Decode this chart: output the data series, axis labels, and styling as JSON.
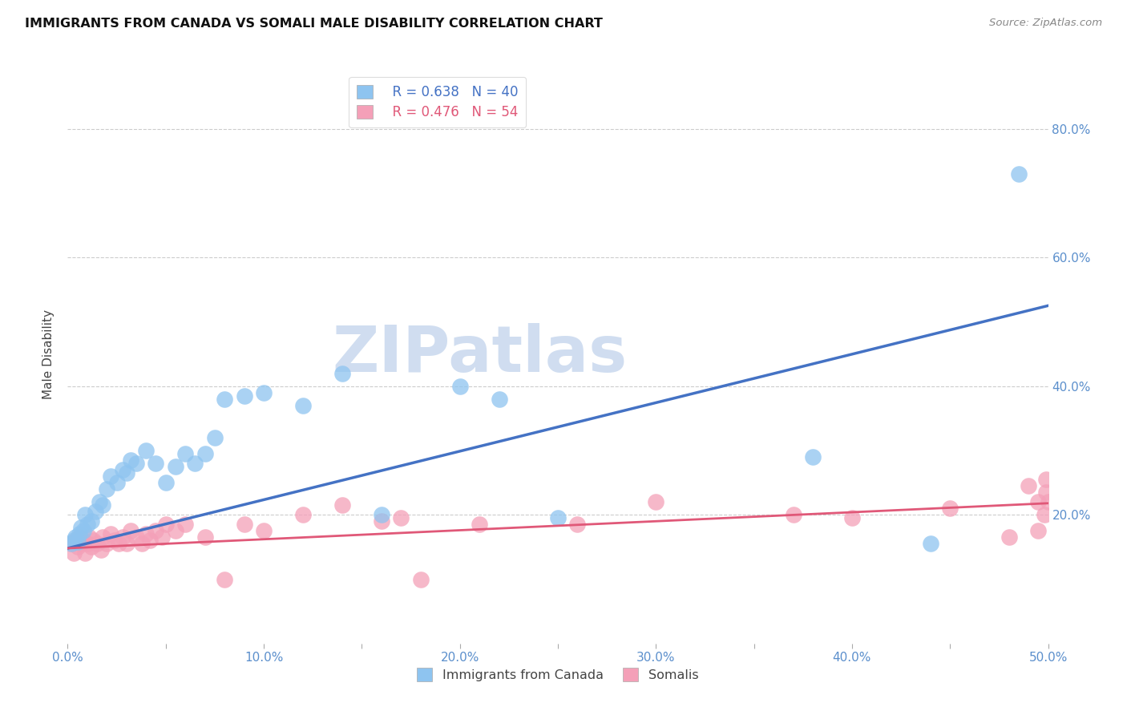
{
  "title": "IMMIGRANTS FROM CANADA VS SOMALI MALE DISABILITY CORRELATION CHART",
  "source": "Source: ZipAtlas.com",
  "ylabel": "Male Disability",
  "xlim": [
    0.0,
    0.5
  ],
  "ylim": [
    0.0,
    0.9
  ],
  "xtick_labels": [
    "0.0%",
    "",
    "10.0%",
    "",
    "20.0%",
    "",
    "30.0%",
    "",
    "40.0%",
    "",
    "50.0%"
  ],
  "xtick_values": [
    0.0,
    0.05,
    0.1,
    0.15,
    0.2,
    0.25,
    0.3,
    0.35,
    0.4,
    0.45,
    0.5
  ],
  "ytick_labels": [
    "20.0%",
    "40.0%",
    "60.0%",
    "80.0%"
  ],
  "ytick_values": [
    0.2,
    0.4,
    0.6,
    0.8
  ],
  "blue_R": 0.638,
  "blue_N": 40,
  "pink_R": 0.476,
  "pink_N": 54,
  "blue_color": "#8EC4F0",
  "pink_color": "#F4A0B8",
  "blue_line_color": "#4472C4",
  "pink_line_color": "#E05878",
  "watermark_text": "ZIPatlas",
  "blue_line_x": [
    0.0,
    0.5
  ],
  "blue_line_y": [
    0.148,
    0.525
  ],
  "pink_line_x": [
    0.0,
    0.5
  ],
  "pink_line_y": [
    0.148,
    0.218
  ],
  "blue_scatter_x": [
    0.002,
    0.003,
    0.004,
    0.005,
    0.006,
    0.007,
    0.008,
    0.009,
    0.01,
    0.012,
    0.014,
    0.016,
    0.018,
    0.02,
    0.022,
    0.025,
    0.028,
    0.03,
    0.032,
    0.035,
    0.04,
    0.045,
    0.05,
    0.055,
    0.06,
    0.065,
    0.07,
    0.075,
    0.08,
    0.09,
    0.1,
    0.12,
    0.14,
    0.16,
    0.2,
    0.22,
    0.25,
    0.38,
    0.44,
    0.485
  ],
  "blue_scatter_y": [
    0.155,
    0.16,
    0.165,
    0.158,
    0.17,
    0.18,
    0.175,
    0.2,
    0.185,
    0.19,
    0.205,
    0.22,
    0.215,
    0.24,
    0.26,
    0.25,
    0.27,
    0.265,
    0.285,
    0.28,
    0.3,
    0.28,
    0.25,
    0.275,
    0.295,
    0.28,
    0.295,
    0.32,
    0.38,
    0.385,
    0.39,
    0.37,
    0.42,
    0.2,
    0.4,
    0.38,
    0.195,
    0.29,
    0.155,
    0.73
  ],
  "pink_scatter_x": [
    0.002,
    0.003,
    0.004,
    0.005,
    0.006,
    0.007,
    0.008,
    0.009,
    0.01,
    0.011,
    0.012,
    0.013,
    0.015,
    0.017,
    0.018,
    0.02,
    0.022,
    0.024,
    0.026,
    0.028,
    0.03,
    0.032,
    0.035,
    0.038,
    0.04,
    0.042,
    0.045,
    0.048,
    0.05,
    0.055,
    0.06,
    0.07,
    0.08,
    0.09,
    0.1,
    0.12,
    0.14,
    0.16,
    0.17,
    0.18,
    0.21,
    0.26,
    0.3,
    0.37,
    0.4,
    0.45,
    0.48,
    0.49,
    0.495,
    0.495,
    0.498,
    0.499,
    0.499,
    0.5
  ],
  "pink_scatter_y": [
    0.155,
    0.14,
    0.16,
    0.15,
    0.165,
    0.155,
    0.16,
    0.14,
    0.155,
    0.165,
    0.15,
    0.16,
    0.155,
    0.145,
    0.165,
    0.155,
    0.17,
    0.16,
    0.155,
    0.165,
    0.155,
    0.175,
    0.165,
    0.155,
    0.17,
    0.16,
    0.175,
    0.165,
    0.185,
    0.175,
    0.185,
    0.165,
    0.1,
    0.185,
    0.175,
    0.2,
    0.215,
    0.19,
    0.195,
    0.1,
    0.185,
    0.185,
    0.22,
    0.2,
    0.195,
    0.21,
    0.165,
    0.245,
    0.22,
    0.175,
    0.2,
    0.235,
    0.255,
    0.22
  ]
}
